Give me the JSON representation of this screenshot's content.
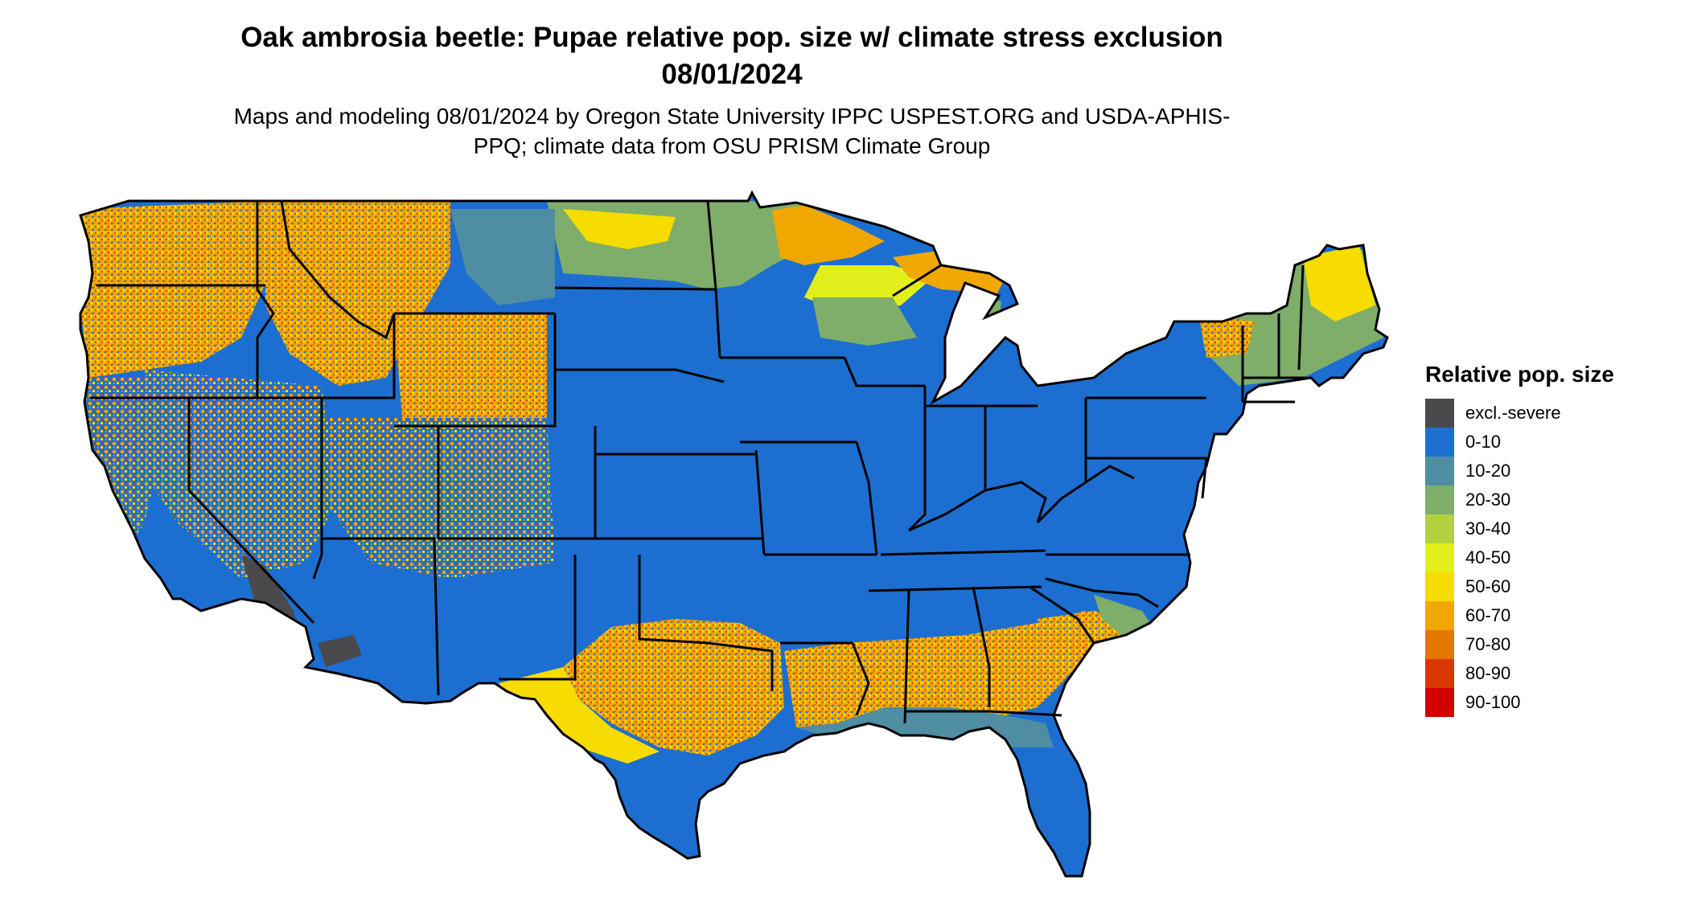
{
  "title": "Oak ambrosia beetle: Pupae relative pop. size w/ climate stress exclusion 08/01/2024",
  "subtitle": "Maps and modeling 08/01/2024 by Oregon State University IPPC USPEST.ORG and USDA-APHIS-PPQ; climate data from OSU PRISM Climate Group",
  "legend": {
    "title": "Relative pop. size",
    "items": [
      {
        "label": "excl.-severe",
        "color": "#4a4a4c"
      },
      {
        "label": "0-10",
        "color": "#1c6fd1"
      },
      {
        "label": "10-20",
        "color": "#4f8da3"
      },
      {
        "label": "20-30",
        "color": "#7fad6a"
      },
      {
        "label": "30-40",
        "color": "#b3d13c"
      },
      {
        "label": "40-50",
        "color": "#e3ef1a"
      },
      {
        "label": "50-60",
        "color": "#f7dc00"
      },
      {
        "label": "60-70",
        "color": "#f0a800"
      },
      {
        "label": "70-80",
        "color": "#e57600"
      },
      {
        "label": "80-90",
        "color": "#d93600"
      },
      {
        "label": "90-100",
        "color": "#d20000"
      }
    ]
  },
  "colors": {
    "background": "#ffffff",
    "base": "#1c6fd1",
    "borders": "#000000"
  }
}
